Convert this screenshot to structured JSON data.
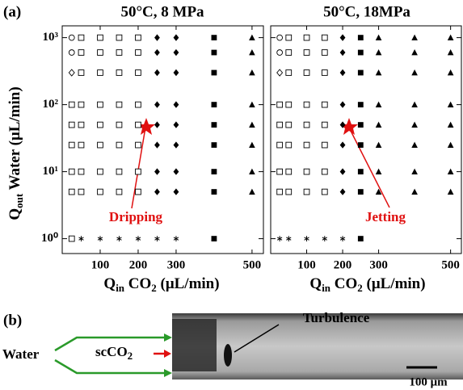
{
  "chart_data": [
    {
      "type": "scatter",
      "title": "50°C, 8 MPa",
      "log_y": true,
      "xlabel": [
        "Q",
        "in",
        " CO",
        "2",
        " (μL/min)"
      ],
      "ylabel": [
        "Q",
        "out",
        " Water (μL/min)"
      ],
      "xlim": [
        0,
        530
      ],
      "xticks": [
        100,
        200,
        300,
        500
      ],
      "ylim": [
        0.6,
        1500
      ],
      "yticks": [
        {
          "value": 1,
          "label": "10⁰"
        },
        {
          "value": 10,
          "label": "10¹"
        },
        {
          "value": 100,
          "label": "10²"
        },
        {
          "value": 1000,
          "label": "10³"
        }
      ],
      "series": [
        {
          "marker": "open-circle",
          "color": "#000",
          "x": [
            25,
            25
          ],
          "values": [
            1000,
            600
          ]
        },
        {
          "marker": "open-diamond",
          "color": "#000",
          "x": [
            25
          ],
          "values": [
            300
          ]
        },
        {
          "marker": "open-square",
          "color": "#000",
          "x": [
            25,
            25,
            25,
            25,
            25,
            25,
            50,
            50,
            50,
            50,
            50,
            50,
            50,
            50,
            100,
            100,
            100,
            100,
            100,
            100,
            100,
            100,
            150,
            150,
            150,
            150,
            150,
            150,
            150,
            150,
            200,
            200,
            200,
            200,
            200,
            200,
            200,
            200
          ],
          "values": [
            100,
            50,
            25,
            10,
            5,
            1,
            1000,
            600,
            300,
            100,
            50,
            25,
            10,
            5,
            1000,
            600,
            300,
            100,
            50,
            25,
            10,
            5,
            1000,
            600,
            300,
            100,
            50,
            25,
            10,
            5,
            1000,
            600,
            300,
            100,
            50,
            25,
            10,
            5
          ]
        },
        {
          "marker": "filled-diamond",
          "color": "#000",
          "x": [
            250,
            250,
            250,
            250,
            250,
            250,
            250,
            250,
            300,
            300,
            300,
            300,
            300,
            300,
            300,
            300
          ],
          "values": [
            1000,
            600,
            300,
            100,
            50,
            25,
            10,
            5,
            1000,
            600,
            300,
            100,
            50,
            25,
            10,
            5
          ]
        },
        {
          "marker": "filled-square",
          "color": "#000",
          "x": [
            400,
            400,
            400,
            400,
            400,
            400,
            400,
            400,
            400
          ],
          "values": [
            1000,
            600,
            300,
            100,
            50,
            25,
            10,
            5,
            1
          ]
        },
        {
          "marker": "triangle",
          "color": "#000",
          "x": [
            500,
            500,
            500,
            500,
            500,
            500,
            500,
            500
          ],
          "values": [
            1000,
            600,
            300,
            100,
            50,
            25,
            10,
            5
          ]
        },
        {
          "marker": "asterisk",
          "color": "#000",
          "x": [
            50,
            100,
            150,
            200,
            250,
            300
          ],
          "values": [
            1,
            1,
            1,
            1,
            1,
            1
          ]
        }
      ]
    },
    {
      "type": "scatter",
      "title": "50°C, 18MPa",
      "log_y": true,
      "xlabel": [
        "Q",
        "in",
        " CO",
        "2",
        " (μL/min)"
      ],
      "xlim": [
        0,
        530
      ],
      "xticks": [
        100,
        200,
        300,
        500
      ],
      "ylim": [
        0.6,
        1500
      ],
      "yticks": [
        1,
        10,
        100,
        1000
      ],
      "series": [
        {
          "marker": "open-circle",
          "color": "#000",
          "x": [
            25,
            25
          ],
          "values": [
            1000,
            600
          ]
        },
        {
          "marker": "open-diamond",
          "color": "#000",
          "x": [
            25
          ],
          "values": [
            300
          ]
        },
        {
          "marker": "open-square",
          "color": "#000",
          "x": [
            25,
            25,
            25,
            25,
            25,
            50,
            50,
            50,
            50,
            50,
            50,
            50,
            50,
            100,
            100,
            100,
            100,
            100,
            100,
            100,
            100,
            150,
            150,
            150,
            150,
            150,
            150,
            150,
            150
          ],
          "values": [
            100,
            50,
            25,
            10,
            5,
            1000,
            600,
            300,
            100,
            50,
            25,
            10,
            5,
            1000,
            600,
            300,
            100,
            50,
            25,
            10,
            5,
            1000,
            600,
            300,
            100,
            50,
            25,
            10,
            5
          ]
        },
        {
          "marker": "filled-diamond",
          "color": "#000",
          "x": [
            200,
            200,
            200,
            200,
            200,
            200,
            200,
            200
          ],
          "values": [
            1000,
            600,
            300,
            100,
            50,
            25,
            10,
            5
          ]
        },
        {
          "marker": "filled-square",
          "color": "#000",
          "x": [
            250,
            250,
            250,
            250,
            250,
            250,
            250,
            250,
            250
          ],
          "values": [
            1000,
            600,
            300,
            100,
            50,
            25,
            10,
            5,
            1
          ]
        },
        {
          "marker": "triangle",
          "color": "#000",
          "x": [
            300,
            300,
            300,
            300,
            300,
            300,
            300,
            300,
            400,
            400,
            400,
            400,
            400,
            400,
            400,
            400,
            500,
            500,
            500,
            500,
            500,
            500,
            500,
            500
          ],
          "values": [
            1000,
            600,
            300,
            100,
            50,
            25,
            10,
            5,
            1000,
            600,
            300,
            100,
            50,
            25,
            10,
            5,
            1000,
            600,
            300,
            100,
            50,
            25,
            10,
            5
          ]
        },
        {
          "marker": "asterisk",
          "color": "#000",
          "x": [
            25,
            50,
            100,
            150,
            200
          ],
          "values": [
            1,
            1,
            1,
            1,
            1
          ]
        }
      ]
    }
  ],
  "panel_a": {
    "label": "(a)",
    "annotations": [
      "Dripping",
      "Jetting"
    ]
  },
  "panel_b": {
    "label": "(b)",
    "water": "Water",
    "co2": [
      "scCO",
      "2"
    ],
    "feature": "Turbulence",
    "scale": "100 μm"
  }
}
